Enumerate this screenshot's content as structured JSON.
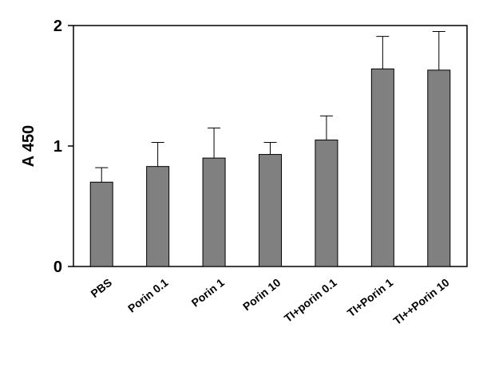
{
  "chart_data": {
    "type": "bar",
    "title": "",
    "xlabel": "",
    "ylabel": "A 450",
    "ylim": [
      0,
      2
    ],
    "yticks": [
      "0",
      "1",
      "2"
    ],
    "grid": false,
    "legend": "none",
    "bar_color": "#808080",
    "categories": [
      "PBS",
      "Porin 0.1",
      "Porin 1",
      "Porin 10",
      "TI+porin 0.1",
      "TI+Porin 1",
      "TI++Porin 10"
    ],
    "series": [
      {
        "values": [
          0.7,
          0.83,
          0.9,
          0.93,
          1.05,
          1.64,
          1.63
        ],
        "error_upper": [
          0.12,
          0.2,
          0.25,
          0.1,
          0.2,
          0.27,
          0.32
        ]
      }
    ]
  }
}
